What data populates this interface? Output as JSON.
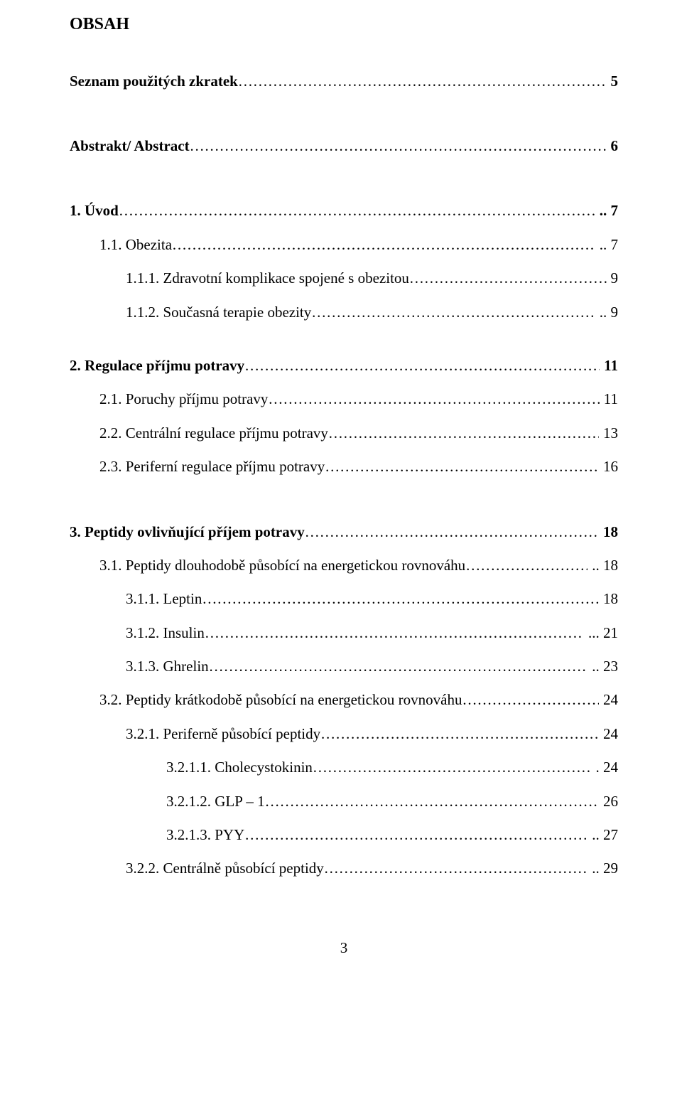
{
  "heading": "OBSAH",
  "entries": [
    {
      "label": "Seznam použitých zkratek",
      "page": "5",
      "bold": true,
      "gap": "",
      "indent": "",
      "dotSuffix": ""
    },
    {
      "label": "Abstrakt/ Abstract",
      "page": "6",
      "bold": true,
      "gap": "gap-xl",
      "indent": "",
      "dotSuffix": ""
    },
    {
      "label": "1.   Úvod",
      "page": "7",
      "bold": true,
      "gap": "gap-xl",
      "indent": "",
      "dotSuffix": ".."
    },
    {
      "label": "1.1.   Obezita",
      "page": "7",
      "bold": false,
      "gap": "gap-m",
      "indent": "ind1",
      "dotSuffix": ".."
    },
    {
      "label": "1.1.1.   Zdravotní komplikace spojené s obezitou",
      "page": "9",
      "bold": false,
      "gap": "gap-m",
      "indent": "ind2",
      "dotSuffix": ""
    },
    {
      "label": "1.1.2.   Současná terapie obezity",
      "page": "9",
      "bold": false,
      "gap": "gap-m",
      "indent": "ind2",
      "dotSuffix": ".."
    },
    {
      "label": "2.   Regulace příjmu potravy",
      "page": "11",
      "bold": true,
      "gap": "gap-l",
      "indent": "",
      "dotSuffix": ""
    },
    {
      "label": "2.1.   Poruchy příjmu potravy",
      "page": "11",
      "bold": false,
      "gap": "gap-m",
      "indent": "ind1",
      "dotSuffix": ""
    },
    {
      "label": "2.2.   Centrální regulace příjmu potravy",
      "page": "13",
      "bold": false,
      "gap": "gap-m",
      "indent": "ind1",
      "dotSuffix": ""
    },
    {
      "label": "2.3.   Periferní regulace příjmu potravy",
      "page": "16",
      "bold": false,
      "gap": "gap-m",
      "indent": "ind1",
      "dotSuffix": ""
    },
    {
      "label": "3.   Peptidy ovlivňující příjem potravy",
      "page": "18",
      "bold": true,
      "gap": "gap-xl",
      "indent": "",
      "dotSuffix": ""
    },
    {
      "label": "3.1.   Peptidy dlouhodobě působící na energetickou rovnováhu",
      "page": "18",
      "bold": false,
      "gap": "gap-m",
      "indent": "ind1",
      "dotSuffix": ".."
    },
    {
      "label": "3.1.1.   Leptin",
      "page": "18",
      "bold": false,
      "gap": "gap-m",
      "indent": "ind2",
      "dotSuffix": ""
    },
    {
      "label": "3.1.2.   Insulin",
      "page": "21",
      "bold": false,
      "gap": "gap-m",
      "indent": "ind2",
      "dotSuffix": "..."
    },
    {
      "label": "3.1.3.   Ghrelin",
      "page": "23",
      "bold": false,
      "gap": "gap-m",
      "indent": "ind2",
      "dotSuffix": ".."
    },
    {
      "label": "3.2.   Peptidy krátkodobě působící na energetickou rovnováhu",
      "page": "24",
      "bold": false,
      "gap": "gap-m",
      "indent": "ind1",
      "dotSuffix": ""
    },
    {
      "label": "3.2.1.   Periferně působící peptidy",
      "page": "24",
      "bold": false,
      "gap": "gap-m",
      "indent": "ind2",
      "dotSuffix": ""
    },
    {
      "label": "3.2.1.1.   Cholecystokinin",
      "page": "24",
      "bold": false,
      "gap": "gap-m",
      "indent": "ind3",
      "dotSuffix": "."
    },
    {
      "label": "3.2.1.2.   GLP – 1",
      "page": "26",
      "bold": false,
      "gap": "gap-m",
      "indent": "ind3",
      "dotSuffix": ""
    },
    {
      "label": "3.2.1.3.   PYY",
      "page": "27",
      "bold": false,
      "gap": "gap-m",
      "indent": "ind3",
      "dotSuffix": ".."
    },
    {
      "label": "3.2.2.   Centrálně působící peptidy",
      "page": "29",
      "bold": false,
      "gap": "gap-m",
      "indent": "ind2",
      "dotSuffix": ".."
    }
  ],
  "footer_page_number": "3"
}
